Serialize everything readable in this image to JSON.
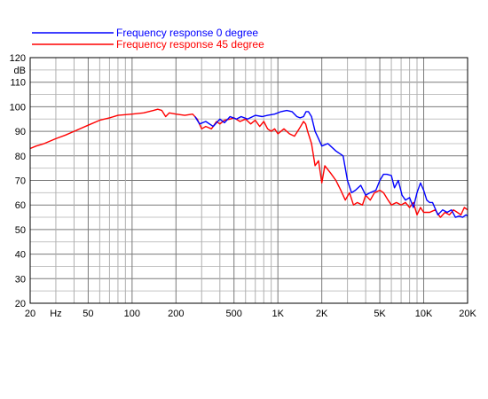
{
  "chart_data": {
    "type": "line",
    "title": "",
    "xlabel": "",
    "ylabel": "dB",
    "x_scale": "log",
    "xlim": [
      20,
      20000
    ],
    "ylim": [
      20,
      120
    ],
    "grid": true,
    "legend_position": "top",
    "x_ticks": [
      {
        "value": 20,
        "label": "20"
      },
      {
        "value": 30,
        "label": "Hz"
      },
      {
        "value": 50,
        "label": "50"
      },
      {
        "value": 100,
        "label": "100"
      },
      {
        "value": 200,
        "label": "200"
      },
      {
        "value": 500,
        "label": "500"
      },
      {
        "value": 1000,
        "label": "1K"
      },
      {
        "value": 2000,
        "label": "2K"
      },
      {
        "value": 5000,
        "label": "5K"
      },
      {
        "value": 10000,
        "label": "10K"
      },
      {
        "value": 20000,
        "label": "20K"
      }
    ],
    "y_ticks": [
      {
        "value": 120,
        "label": "120"
      },
      {
        "value": 115,
        "label": "dB"
      },
      {
        "value": 110,
        "label": "110"
      },
      {
        "value": 100,
        "label": "100"
      },
      {
        "value": 90,
        "label": "90"
      },
      {
        "value": 80,
        "label": "80"
      },
      {
        "value": 70,
        "label": "70"
      },
      {
        "value": 60,
        "label": "60"
      },
      {
        "value": 50,
        "label": "50"
      },
      {
        "value": 40,
        "label": "40"
      },
      {
        "value": 30,
        "label": "30"
      },
      {
        "value": 20,
        "label": "20"
      }
    ],
    "series": [
      {
        "name": "Frequency response 0 degree",
        "color": "#0000ff",
        "x": [
          270,
          290,
          320,
          360,
          400,
          430,
          470,
          520,
          560,
          620,
          700,
          780,
          850,
          950,
          1050,
          1150,
          1250,
          1350,
          1420,
          1500,
          1560,
          1620,
          1700,
          1800,
          1900,
          2000,
          2200,
          2500,
          2800,
          3000,
          3200,
          3400,
          3700,
          4000,
          4300,
          4700,
          5000,
          5300,
          5600,
          6000,
          6300,
          6700,
          7100,
          7500,
          8000,
          8500,
          9000,
          9500,
          10000,
          10500,
          11000,
          11500,
          12500,
          13500,
          14500,
          15500,
          16500,
          17500,
          18500,
          19500,
          20000
        ],
        "y": [
          96,
          93,
          94,
          92,
          95,
          93.5,
          96,
          95,
          96,
          95,
          96.5,
          96,
          96.5,
          97,
          98,
          98.5,
          98,
          96,
          95.5,
          96,
          98,
          98,
          96,
          90,
          87,
          84,
          85,
          82,
          80,
          70,
          65,
          66,
          68,
          64,
          65,
          66,
          70,
          72.5,
          72.5,
          72,
          67,
          70,
          64,
          62,
          63,
          59,
          65,
          69,
          66,
          62,
          61,
          61,
          56,
          58,
          57,
          58,
          55,
          55.5,
          55,
          56,
          55.5
        ]
      },
      {
        "name": "Frequency response 45 degree",
        "color": "#ff0000",
        "x": [
          20,
          22,
          25,
          30,
          35,
          40,
          50,
          60,
          70,
          80,
          100,
          120,
          140,
          150,
          160,
          170,
          180,
          200,
          230,
          260,
          280,
          300,
          320,
          350,
          380,
          400,
          430,
          470,
          500,
          550,
          600,
          650,
          700,
          750,
          800,
          850,
          900,
          950,
          1000,
          1100,
          1200,
          1300,
          1400,
          1500,
          1550,
          1600,
          1700,
          1800,
          1900,
          2000,
          2100,
          2300,
          2500,
          2700,
          2900,
          3100,
          3300,
          3500,
          3800,
          4000,
          4300,
          4600,
          5000,
          5300,
          5700,
          6000,
          6500,
          7000,
          7500,
          8000,
          8500,
          9000,
          9500,
          10000,
          11000,
          12000,
          13000,
          14000,
          15000,
          16000,
          17000,
          18000,
          19000,
          20000
        ],
        "y": [
          83,
          84,
          85,
          87,
          88.5,
          90,
          92.5,
          94.5,
          95.5,
          96.5,
          97,
          97.5,
          98.5,
          99,
          98.5,
          96,
          97.5,
          97,
          96.5,
          97,
          95,
          91,
          92,
          91,
          94,
          93,
          94.5,
          95,
          95.5,
          94,
          95,
          93,
          94.5,
          92,
          94,
          91,
          90,
          91,
          89,
          91,
          89,
          88,
          91,
          94,
          93,
          90,
          85,
          76,
          78,
          69,
          76,
          73,
          70,
          66,
          62,
          65,
          60,
          61,
          60,
          64,
          62,
          65,
          66,
          65,
          62,
          60,
          61,
          60,
          61,
          59,
          61,
          56,
          59,
          57,
          57,
          58,
          55,
          57,
          56,
          58,
          57,
          56,
          59,
          58
        ]
      }
    ]
  }
}
